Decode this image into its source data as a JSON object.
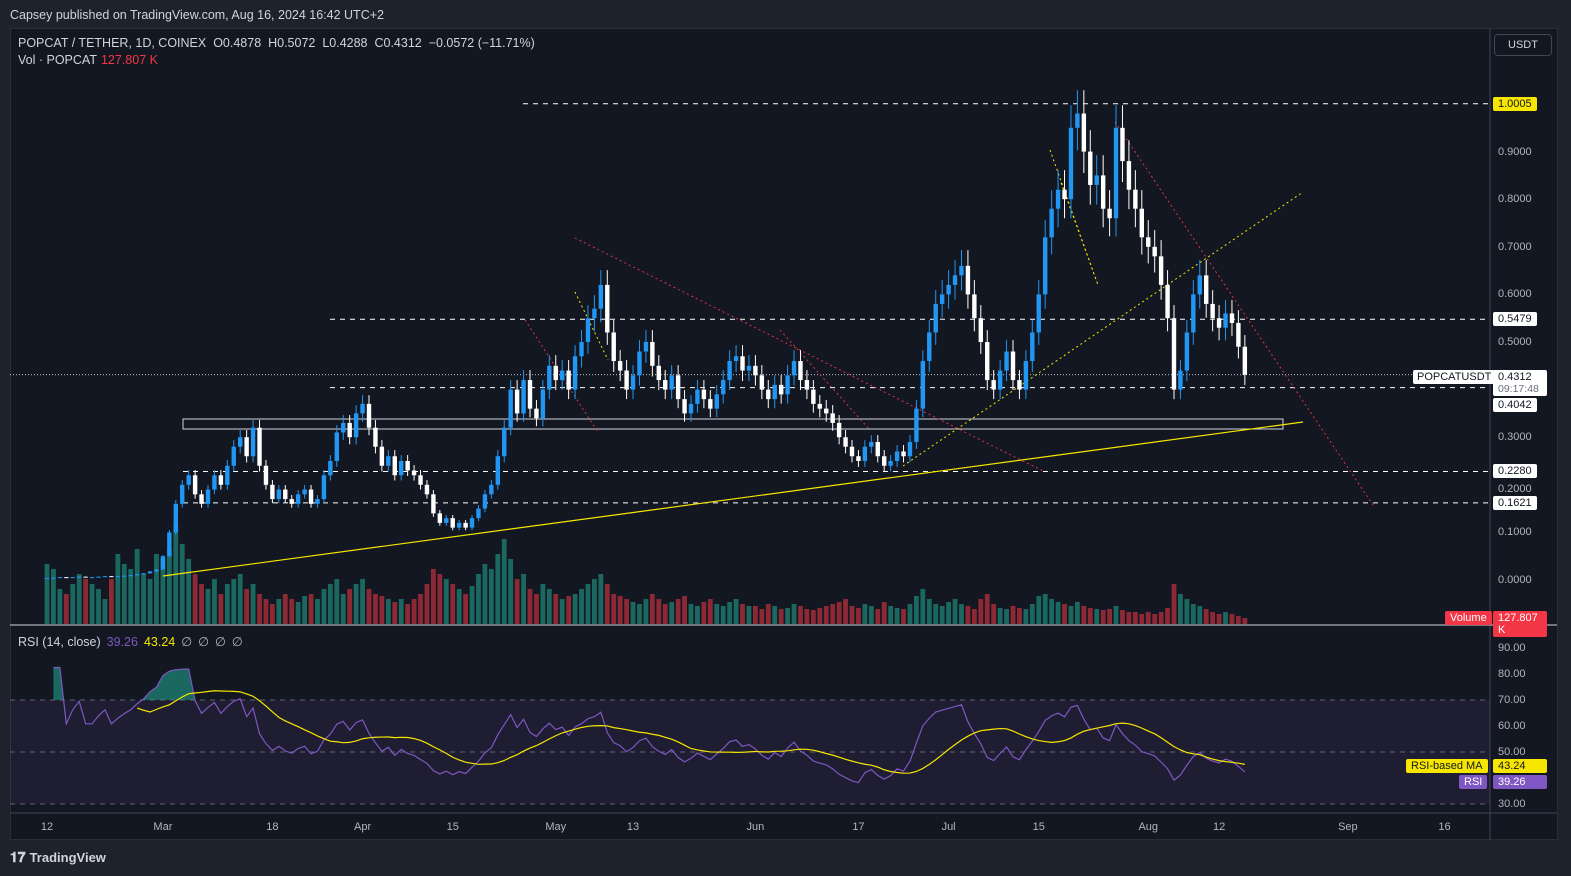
{
  "published": "Capsey published on TradingView.com, Aug 16, 2024 16:42 UTC+2",
  "legend": {
    "symbol": "POPCAT / TETHER, 1D, COINEX",
    "open": "O0.4878",
    "high": "H0.5072",
    "low": "L0.4288",
    "close": "C0.4312",
    "change": "−0.0572 (−11.71%)",
    "vol_label": "Vol · POPCAT",
    "vol_value": "127.807 K"
  },
  "currency": "USDT",
  "rsi_legend": {
    "label": "RSI (14, close)",
    "rsi": "39.26",
    "ma": "43.24",
    "empty": [
      "∅",
      "∅",
      "∅",
      "∅"
    ]
  },
  "price_axis": {
    "ticks": [
      "0.9000",
      "0.8000",
      "0.7000",
      "0.6000",
      "0.5000",
      "0.3000",
      "0.2000",
      "0.1000",
      "0.0000"
    ],
    "tick_values": [
      0.9,
      0.8,
      0.7,
      0.6,
      0.5,
      0.3,
      0.2,
      0.1,
      0.0
    ],
    "levels": [
      {
        "label": "1.0005",
        "value": 1.0005,
        "highlight": true
      },
      {
        "label": "0.5479",
        "value": 0.5479,
        "highlight": false
      },
      {
        "label": "0.4042",
        "value": 0.4042,
        "highlight": false
      },
      {
        "label": "0.2280",
        "value": 0.228,
        "highlight": false
      },
      {
        "label": "0.1621",
        "value": 0.1621,
        "highlight": false
      }
    ],
    "symbol_tag": "POPCATUSDT",
    "last_price": "0.4312",
    "countdown": "09:17:48"
  },
  "volume_tag": {
    "label": "Volume",
    "value": "127.807 K"
  },
  "rsi_axis": {
    "ticks": [
      "90.00",
      "80.00",
      "70.00",
      "60.00",
      "50.00",
      "30.00"
    ],
    "tick_values": [
      90,
      80,
      70,
      60,
      50,
      30
    ],
    "ma_tag": "RSI-based MA",
    "ma_value": "43.24",
    "rsi_tag": "RSI",
    "rsi_value": "39.26"
  },
  "time_axis": [
    {
      "label": "12",
      "day": 0
    },
    {
      "label": "Mar",
      "day": 18
    },
    {
      "label": "18",
      "day": 35
    },
    {
      "label": "Apr",
      "day": 49
    },
    {
      "label": "15",
      "day": 63
    },
    {
      "label": "May",
      "day": 79
    },
    {
      "label": "13",
      "day": 91
    },
    {
      "label": "Jun",
      "day": 110
    },
    {
      "label": "17",
      "day": 126
    },
    {
      "label": "Jul",
      "day": 140
    },
    {
      "label": "15",
      "day": 154
    },
    {
      "label": "Aug",
      "day": 171
    },
    {
      "label": "12",
      "day": 182
    },
    {
      "label": "Sep",
      "day": 202
    },
    {
      "label": "16",
      "day": 217
    }
  ],
  "brand": "TradingView",
  "colors": {
    "up": "#2196f3",
    "down": "#ffffff",
    "vol_up": "#22ab94",
    "vol_down": "#f23645",
    "rsi": "#7e57c2",
    "rsi_ma": "#f7e600",
    "trend": "#f7e600"
  },
  "chart_data": {
    "type": "candlestick",
    "title": "POPCAT / TETHER, 1D, COINEX",
    "start_date": "2024-02-12",
    "ylim": [
      0,
      1.05
    ],
    "closes": [
      0.004,
      0.005,
      0.006,
      0.005,
      0.006,
      0.007,
      0.006,
      0.006,
      0.007,
      0.008,
      0.007,
      0.008,
      0.009,
      0.01,
      0.012,
      0.014,
      0.018,
      0.022,
      0.05,
      0.1,
      0.16,
      0.2,
      0.22,
      0.18,
      0.16,
      0.19,
      0.22,
      0.2,
      0.24,
      0.28,
      0.3,
      0.26,
      0.32,
      0.24,
      0.2,
      0.17,
      0.19,
      0.17,
      0.16,
      0.18,
      0.19,
      0.16,
      0.17,
      0.22,
      0.25,
      0.31,
      0.33,
      0.3,
      0.35,
      0.37,
      0.32,
      0.28,
      0.24,
      0.26,
      0.22,
      0.25,
      0.23,
      0.22,
      0.2,
      0.18,
      0.14,
      0.12,
      0.13,
      0.11,
      0.12,
      0.11,
      0.13,
      0.15,
      0.18,
      0.2,
      0.26,
      0.32,
      0.4,
      0.35,
      0.42,
      0.36,
      0.34,
      0.4,
      0.45,
      0.42,
      0.44,
      0.4,
      0.47,
      0.5,
      0.55,
      0.57,
      0.62,
      0.52,
      0.46,
      0.44,
      0.4,
      0.43,
      0.48,
      0.5,
      0.45,
      0.42,
      0.4,
      0.43,
      0.38,
      0.35,
      0.37,
      0.4,
      0.38,
      0.36,
      0.39,
      0.42,
      0.46,
      0.47,
      0.44,
      0.45,
      0.43,
      0.4,
      0.38,
      0.41,
      0.39,
      0.43,
      0.46,
      0.42,
      0.4,
      0.37,
      0.36,
      0.35,
      0.33,
      0.3,
      0.28,
      0.26,
      0.25,
      0.28,
      0.29,
      0.26,
      0.24,
      0.25,
      0.27,
      0.26,
      0.29,
      0.36,
      0.46,
      0.52,
      0.58,
      0.6,
      0.62,
      0.64,
      0.66,
      0.6,
      0.55,
      0.5,
      0.42,
      0.4,
      0.44,
      0.48,
      0.42,
      0.4,
      0.46,
      0.52,
      0.6,
      0.72,
      0.78,
      0.82,
      0.8,
      0.95,
      0.98,
      0.9,
      0.83,
      0.85,
      0.78,
      0.76,
      0.95,
      0.88,
      0.82,
      0.78,
      0.72,
      0.7,
      0.68,
      0.62,
      0.55,
      0.4,
      0.44,
      0.52,
      0.6,
      0.64,
      0.58,
      0.55,
      0.53,
      0.56,
      0.54,
      0.49,
      0.4312
    ],
    "volume_relative": [
      60,
      55,
      35,
      30,
      40,
      50,
      45,
      40,
      35,
      25,
      45,
      70,
      60,
      55,
      75,
      50,
      45,
      70,
      65,
      75,
      100,
      80,
      65,
      50,
      40,
      35,
      45,
      30,
      40,
      45,
      50,
      35,
      40,
      30,
      25,
      20,
      25,
      30,
      25,
      22,
      28,
      30,
      25,
      35,
      40,
      45,
      30,
      35,
      40,
      45,
      35,
      30,
      28,
      25,
      22,
      25,
      20,
      25,
      30,
      40,
      55,
      50,
      45,
      40,
      35,
      30,
      38,
      50,
      60,
      55,
      70,
      85,
      65,
      45,
      50,
      35,
      30,
      40,
      35,
      30,
      25,
      28,
      30,
      35,
      40,
      45,
      50,
      40,
      30,
      28,
      25,
      22,
      20,
      25,
      30,
      25,
      20,
      22,
      25,
      28,
      20,
      18,
      22,
      25,
      20,
      18,
      22,
      25,
      20,
      18,
      18,
      15,
      20,
      18,
      15,
      16,
      20,
      18,
      15,
      14,
      16,
      18,
      20,
      22,
      25,
      18,
      16,
      20,
      18,
      15,
      22,
      18,
      16,
      15,
      20,
      28,
      35,
      25,
      20,
      18,
      22,
      25,
      20,
      18,
      15,
      25,
      30,
      20,
      16,
      15,
      18,
      16,
      15,
      20,
      28,
      30,
      25,
      22,
      20,
      18,
      22,
      18,
      16,
      15,
      14,
      15,
      18,
      14,
      12,
      12,
      10,
      12,
      10,
      12,
      16,
      40,
      30,
      25,
      20,
      18,
      15,
      12,
      10,
      12,
      10,
      8,
      6
    ],
    "last_ohlc": {
      "open": 0.4878,
      "high": 0.5072,
      "low": 0.4288,
      "close": 0.4312
    },
    "rsi_period": 14,
    "rsi_last": 39.26,
    "rsi_ma_last": 43.24,
    "rsi_bands": [
      30,
      50,
      70
    ]
  }
}
